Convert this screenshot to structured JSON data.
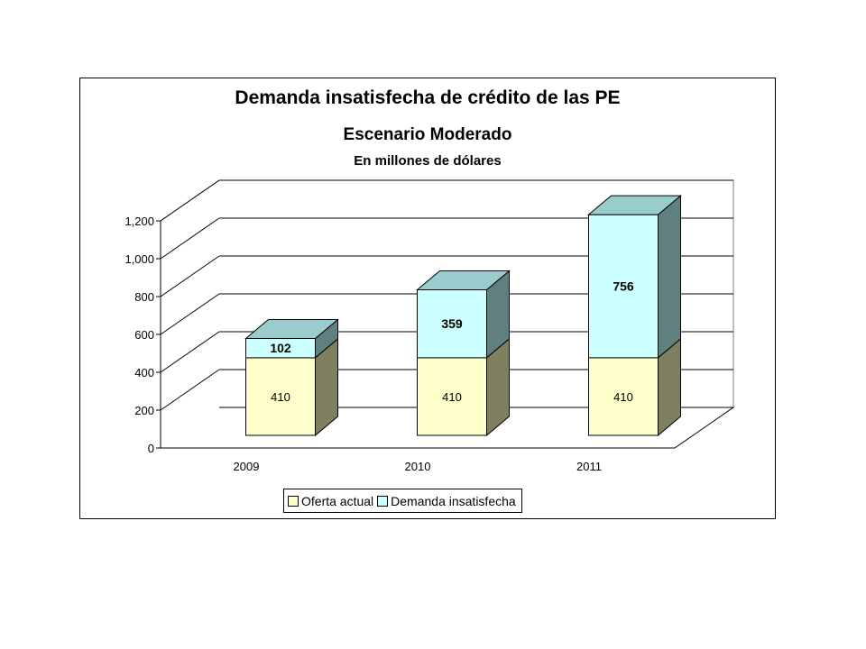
{
  "chart_data": {
    "type": "bar",
    "stacked": true,
    "three_d": true,
    "title": "Demanda insatisfecha de crédito de las PE",
    "subtitle": "Escenario Moderado",
    "unit_label": "En millones de dólares",
    "categories": [
      "2009",
      "2010",
      "2011"
    ],
    "series": [
      {
        "name": "Oferta actual",
        "values": [
          410,
          410,
          410
        ],
        "color": "#ffffcc",
        "labels": [
          "410",
          "410",
          "410"
        ]
      },
      {
        "name": "Demanda insatisfecha",
        "values": [
          102,
          359,
          756
        ],
        "color": "#ccffff",
        "labels": [
          "102",
          "359",
          "756"
        ]
      }
    ],
    "ylim": [
      0,
      1200
    ],
    "yticks": [
      0,
      200,
      400,
      600,
      800,
      1000,
      1200
    ],
    "ytick_labels": [
      "0",
      "200",
      "400",
      "600",
      "800",
      "1,000",
      "1,200"
    ],
    "grid": true,
    "legend_position": "bottom"
  }
}
